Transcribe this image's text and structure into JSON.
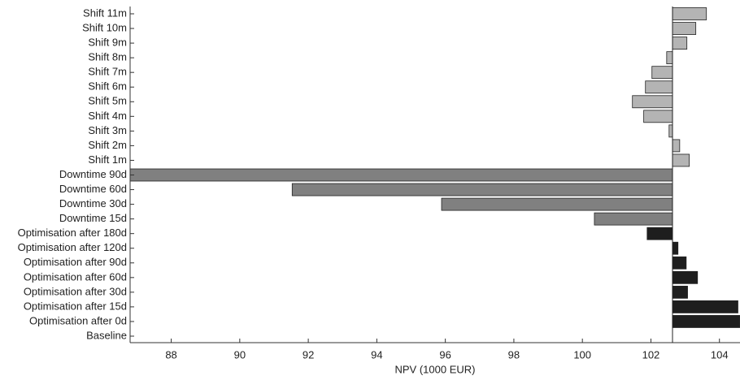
{
  "chart_data": {
    "type": "hbar",
    "x_label": "NPV (1000 EUR)",
    "categories": [
      "Shift 11m",
      "Shift 10m",
      "Shift 9m",
      "Shift 8m",
      "Shift 7m",
      "Shift 6m",
      "Shift 5m",
      "Shift 4m",
      "Shift 3m",
      "Shift 2m",
      "Shift 1m",
      "Downtime 90d",
      "Downtime 60d",
      "Downtime 30d",
      "Downtime 15d",
      "Optimisation after 180d",
      "Optimisation after 120d",
      "Optimisation after 90d",
      "Optimisation after 60d",
      "Optimisation after 30d",
      "Optimisation after 15d",
      "Optimisation after 0d",
      "Baseline"
    ],
    "values": [
      103.62,
      103.31,
      103.05,
      102.46,
      102.03,
      101.84,
      101.46,
      101.79,
      102.53,
      102.84,
      103.12,
      86.8,
      91.53,
      95.89,
      100.35,
      101.89,
      102.79,
      103.03,
      103.36,
      103.07,
      104.54,
      104.59,
      102.63
    ],
    "colors": [
      "#b4b4b4",
      "#b4b4b4",
      "#b4b4b4",
      "#b4b4b4",
      "#b4b4b4",
      "#b4b4b4",
      "#b4b4b4",
      "#b4b4b4",
      "#b4b4b4",
      "#b4b4b4",
      "#b4b4b4",
      "#808080",
      "#808080",
      "#808080",
      "#808080",
      "#1e1e1e",
      "#1e1e1e",
      "#1e1e1e",
      "#1e1e1e",
      "#1e1e1e",
      "#1e1e1e",
      "#1e1e1e",
      "#1e1e1e"
    ],
    "baseline_category": 22,
    "xlim": [
      86.8,
      104.6
    ],
    "xticks": [
      88,
      90,
      92,
      94,
      96,
      98,
      100,
      102,
      104
    ]
  }
}
